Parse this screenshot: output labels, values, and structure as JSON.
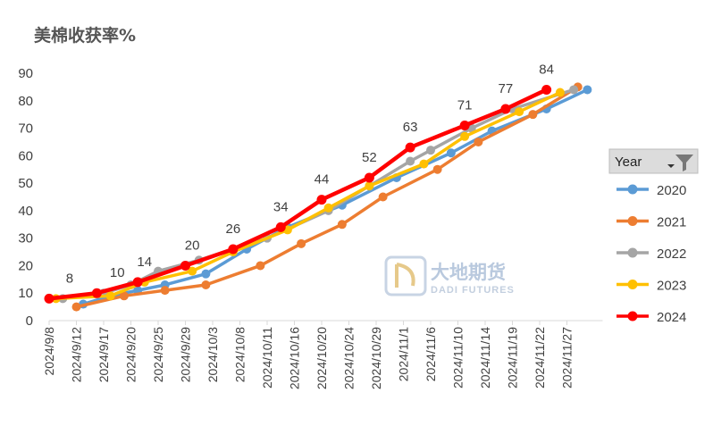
{
  "chart_data": {
    "type": "line",
    "title": "美棉收获率%",
    "xlabel": "",
    "ylabel": "",
    "ylim": [
      0,
      90
    ],
    "yticks": [
      0,
      10,
      20,
      30,
      40,
      50,
      60,
      70,
      80,
      90
    ],
    "grid": false,
    "legend_position": "right",
    "legend_title": "Year",
    "categories": [
      "2024/9/8",
      "2024/9/12",
      "2024/9/17",
      "2024/9/20",
      "2024/9/25",
      "2024/9/29",
      "2024/10/3",
      "2024/10/8",
      "2024/10/11",
      "2024/10/16",
      "2024/10/20",
      "2024/10/24",
      "2024/10/29",
      "2024/11/1",
      "2024/11/6",
      "2024/11/10",
      "2024/11/14",
      "2024/11/19",
      "2024/11/22",
      "2024/11/27"
    ],
    "series": [
      {
        "name": "2020",
        "color": "#5b9bd5",
        "points": [
          [
            1.25,
            6
          ],
          [
            2.25,
            9
          ],
          [
            3.25,
            11
          ],
          [
            4.25,
            13
          ],
          [
            5.75,
            17
          ],
          [
            7.25,
            26
          ],
          [
            8.75,
            34
          ],
          [
            10.75,
            42
          ],
          [
            12.75,
            52
          ],
          [
            14.75,
            61
          ],
          [
            16.25,
            69
          ],
          [
            18.25,
            77
          ],
          [
            19.75,
            84
          ]
        ]
      },
      {
        "name": "2021",
        "color": "#ed7d31",
        "points": [
          [
            1.0,
            5
          ],
          [
            2.75,
            9
          ],
          [
            4.25,
            11
          ],
          [
            5.75,
            13
          ],
          [
            7.75,
            20
          ],
          [
            9.25,
            28
          ],
          [
            10.75,
            35
          ],
          [
            12.25,
            45
          ],
          [
            14.25,
            55
          ],
          [
            15.75,
            65
          ],
          [
            17.75,
            75
          ],
          [
            19.4,
            85
          ]
        ]
      },
      {
        "name": "2022",
        "color": "#a5a5a5",
        "points": [
          [
            0.5,
            8
          ],
          [
            2.0,
            10
          ],
          [
            3.0,
            13
          ],
          [
            4.0,
            18
          ],
          [
            5.5,
            22
          ],
          [
            8.0,
            30
          ],
          [
            10.25,
            40
          ],
          [
            11.75,
            49
          ],
          [
            13.25,
            58
          ],
          [
            14.0,
            62
          ],
          [
            15.5,
            70
          ],
          [
            17.0,
            77
          ],
          [
            19.25,
            84
          ]
        ]
      },
      {
        "name": "2023",
        "color": "#ffc000",
        "points": [
          [
            0.25,
            8
          ],
          [
            2.25,
            9
          ],
          [
            3.5,
            14
          ],
          [
            5.25,
            18
          ],
          [
            6.75,
            25
          ],
          [
            8.75,
            33
          ],
          [
            10.25,
            41
          ],
          [
            11.75,
            49
          ],
          [
            13.75,
            57
          ],
          [
            15.25,
            67
          ],
          [
            17.25,
            76
          ],
          [
            18.75,
            83
          ]
        ]
      },
      {
        "name": "2024",
        "color": "#ff0000",
        "points": [
          [
            0,
            8
          ],
          [
            1.75,
            10
          ],
          [
            3.25,
            14
          ],
          [
            5.0,
            20
          ],
          [
            6.75,
            26
          ],
          [
            8.5,
            34
          ],
          [
            10.0,
            44
          ],
          [
            11.75,
            52
          ],
          [
            13.25,
            63
          ],
          [
            15.25,
            71
          ],
          [
            16.75,
            77
          ],
          [
            18.25,
            84
          ]
        ]
      }
    ],
    "data_labels": [
      {
        "x": 0.75,
        "y": 8,
        "text": "8"
      },
      {
        "x": 2.5,
        "y": 10,
        "text": "10"
      },
      {
        "x": 3.5,
        "y": 14,
        "text": "14"
      },
      {
        "x": 5.25,
        "y": 20,
        "text": "20"
      },
      {
        "x": 6.75,
        "y": 26,
        "text": "26"
      },
      {
        "x": 8.5,
        "y": 34,
        "text": "34"
      },
      {
        "x": 10.0,
        "y": 44,
        "text": "44"
      },
      {
        "x": 11.75,
        "y": 52,
        "text": "52"
      },
      {
        "x": 13.25,
        "y": 63,
        "text": "63"
      },
      {
        "x": 15.25,
        "y": 71,
        "text": "71"
      },
      {
        "x": 16.75,
        "y": 77,
        "text": "77"
      },
      {
        "x": 18.25,
        "y": 84,
        "text": "84"
      }
    ]
  },
  "legend": {
    "title": "Year",
    "filter_icon": "funnel-icon",
    "dropdown_icon": "dropdown-arrow-icon"
  },
  "watermark": {
    "logo_icon": "dadi-logo-icon",
    "text": "大地期货",
    "subtext": "DADI FUTURES"
  }
}
